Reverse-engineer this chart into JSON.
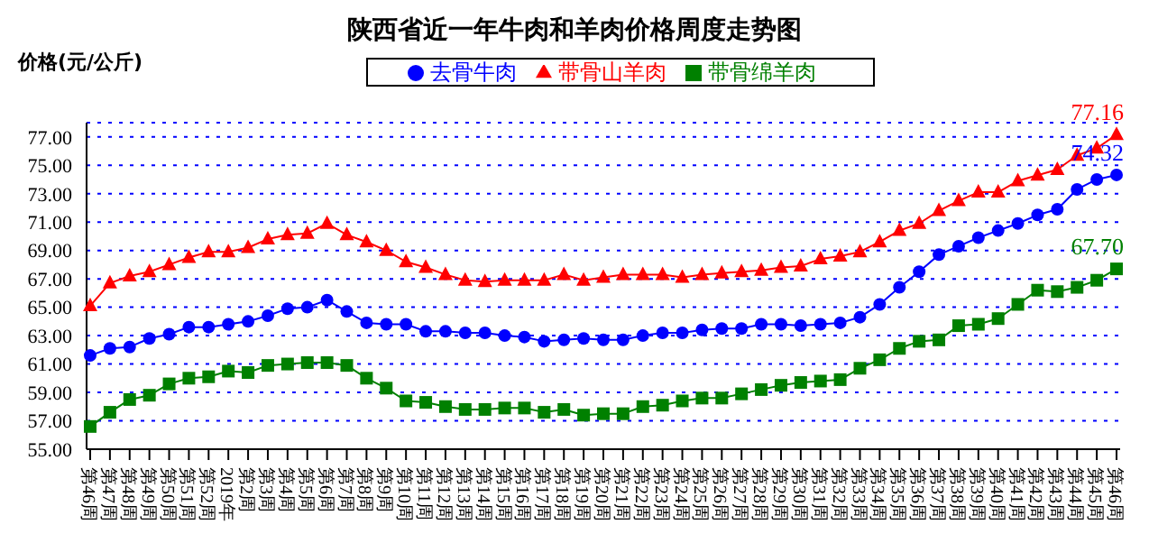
{
  "chart_data": {
    "type": "line",
    "title": "陕西省近一年牛肉和羊肉价格周度走势图",
    "ylabel": "价格(元/公斤)",
    "categories": [
      "第46周",
      "第47周",
      "第48周",
      "第49周",
      "第50周",
      "第51周",
      "第52周",
      "2019年",
      "第2周",
      "第3周",
      "第4周",
      "第5周",
      "第6周",
      "第7周",
      "第8周",
      "第9周",
      "第10周",
      "第11周",
      "第12周",
      "第13周",
      "第14周",
      "第15周",
      "第16周",
      "第17周",
      "第18周",
      "第19周",
      "第20周",
      "第21周",
      "第22周",
      "第23周",
      "第24周",
      "第25周",
      "第26周",
      "第27周",
      "第28周",
      "第29周",
      "第30周",
      "第31周",
      "第32周",
      "第33周",
      "第34周",
      "第35周",
      "第36周",
      "第37周",
      "第38周",
      "第39周",
      "第40周",
      "第41周",
      "第42周",
      "第43周",
      "第44周",
      "第45周",
      "第46周"
    ],
    "series": [
      {
        "name": "去骨牛肉",
        "color": "#0000ff",
        "marker": "circle",
        "values": [
          61.6,
          62.1,
          62.2,
          62.8,
          63.1,
          63.6,
          63.6,
          63.8,
          64.0,
          64.4,
          64.9,
          65.0,
          65.5,
          64.7,
          63.9,
          63.8,
          63.8,
          63.3,
          63.3,
          63.2,
          63.2,
          63.0,
          62.9,
          62.6,
          62.7,
          62.8,
          62.7,
          62.7,
          63.0,
          63.2,
          63.2,
          63.4,
          63.5,
          63.5,
          63.8,
          63.8,
          63.7,
          63.8,
          63.9,
          64.3,
          65.2,
          66.4,
          67.5,
          68.7,
          69.3,
          69.9,
          70.4,
          70.9,
          71.5,
          71.9,
          73.3,
          74.0,
          74.32
        ],
        "value_labels": [
          null,
          null,
          null,
          null,
          null,
          null,
          null,
          null,
          null,
          null,
          null,
          null,
          null,
          null,
          null,
          null,
          null,
          null,
          null,
          null,
          null,
          null,
          null,
          null,
          null,
          null,
          null,
          null,
          null,
          null,
          null,
          null,
          null,
          null,
          null,
          null,
          null,
          null,
          null,
          null,
          null,
          null,
          null,
          null,
          null,
          null,
          null,
          null,
          null,
          null,
          null,
          null,
          "74.32"
        ]
      },
      {
        "name": "带骨山羊肉",
        "color": "#ff0000",
        "marker": "triangle",
        "values": [
          65.1,
          66.7,
          67.2,
          67.5,
          68.0,
          68.5,
          68.9,
          68.9,
          69.2,
          69.8,
          70.1,
          70.2,
          70.9,
          70.1,
          69.6,
          69.0,
          68.2,
          67.8,
          67.3,
          66.9,
          66.8,
          66.9,
          66.9,
          66.9,
          67.3,
          66.9,
          67.1,
          67.3,
          67.3,
          67.3,
          67.1,
          67.3,
          67.4,
          67.5,
          67.6,
          67.8,
          67.9,
          68.4,
          68.6,
          68.9,
          69.6,
          70.4,
          70.9,
          71.8,
          72.5,
          73.1,
          73.1,
          73.9,
          74.3,
          74.7,
          75.7,
          76.2,
          77.16
        ],
        "value_labels": [
          null,
          null,
          null,
          null,
          null,
          null,
          null,
          null,
          null,
          null,
          null,
          null,
          null,
          null,
          null,
          null,
          null,
          null,
          null,
          null,
          null,
          null,
          null,
          null,
          null,
          null,
          null,
          null,
          null,
          null,
          null,
          null,
          null,
          null,
          null,
          null,
          null,
          null,
          null,
          null,
          null,
          null,
          null,
          null,
          null,
          null,
          null,
          null,
          null,
          null,
          null,
          null,
          "77.16"
        ]
      },
      {
        "name": "带骨绵羊肉",
        "color": "#008000",
        "marker": "square",
        "values": [
          56.6,
          57.6,
          58.5,
          58.8,
          59.6,
          60.0,
          60.1,
          60.5,
          60.4,
          60.9,
          61.0,
          61.1,
          61.1,
          60.9,
          60.0,
          59.3,
          58.4,
          58.3,
          58.0,
          57.8,
          57.8,
          57.9,
          57.9,
          57.6,
          57.8,
          57.4,
          57.5,
          57.5,
          58.0,
          58.1,
          58.4,
          58.6,
          58.6,
          58.9,
          59.2,
          59.5,
          59.7,
          59.8,
          59.9,
          60.7,
          61.3,
          62.1,
          62.6,
          62.7,
          63.7,
          63.8,
          64.2,
          65.2,
          66.2,
          66.1,
          66.4,
          66.9,
          67.7
        ],
        "value_labels": [
          null,
          null,
          null,
          null,
          null,
          null,
          null,
          null,
          null,
          null,
          null,
          null,
          null,
          null,
          null,
          null,
          null,
          null,
          null,
          null,
          null,
          null,
          null,
          null,
          null,
          null,
          null,
          null,
          null,
          null,
          null,
          null,
          null,
          null,
          null,
          null,
          null,
          null,
          null,
          null,
          null,
          null,
          null,
          null,
          null,
          null,
          null,
          null,
          null,
          null,
          null,
          null,
          "67.70"
        ]
      }
    ],
    "ylim": [
      55,
      78
    ],
    "yticks": [
      {
        "value": 55,
        "label": "55.00"
      },
      {
        "value": 57,
        "label": "57.00"
      },
      {
        "value": 59,
        "label": "59.00"
      },
      {
        "value": 61,
        "label": "61.00"
      },
      {
        "value": 63,
        "label": "63.00"
      },
      {
        "value": 65,
        "label": "65.00"
      },
      {
        "value": 67,
        "label": "67.00"
      },
      {
        "value": 69,
        "label": "69.00"
      },
      {
        "value": 71,
        "label": "71.00"
      },
      {
        "value": 73,
        "label": "73.00"
      },
      {
        "value": 75,
        "label": "75.00"
      },
      {
        "value": 77,
        "label": "77.00"
      }
    ],
    "grid": "y",
    "legend": "top",
    "line_style": "solid"
  }
}
